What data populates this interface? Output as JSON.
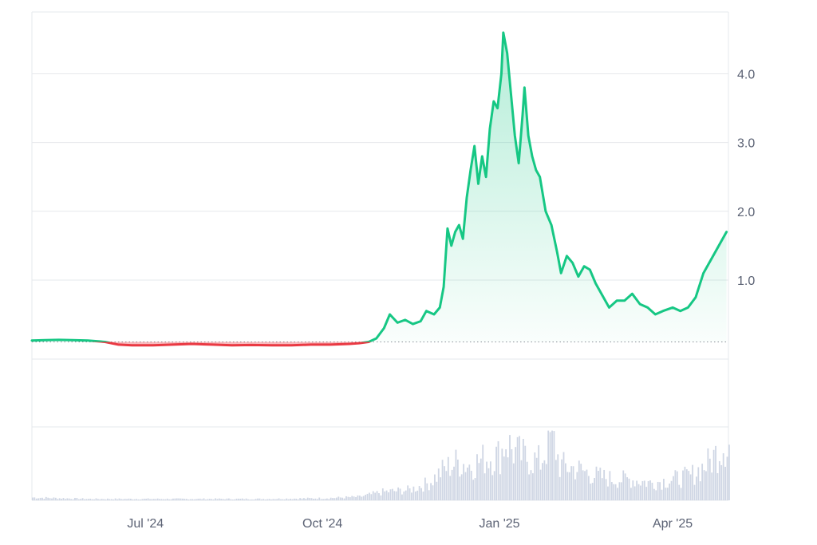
{
  "chart_data": {
    "type": "area",
    "baseline": 0.1,
    "ylim": [
      -0.15,
      4.9
    ],
    "y_ticks": [
      {
        "value": 4.0,
        "label": "4.0"
      },
      {
        "value": 3.0,
        "label": "3.0"
      },
      {
        "value": 2.0,
        "label": "2.0"
      },
      {
        "value": 1.0,
        "label": "1.0"
      }
    ],
    "x_range": [
      "2024-05-03",
      "2025-04-30"
    ],
    "x_ticks": [
      {
        "date": "2024-07-01",
        "label": "Jul '24"
      },
      {
        "date": "2024-10-01",
        "label": "Oct '24"
      },
      {
        "date": "2025-01-01",
        "label": "Jan '25"
      },
      {
        "date": "2025-04-01",
        "label": "Apr '25"
      }
    ],
    "colors": {
      "up": "#16c784",
      "down": "#ea3943",
      "grid": "#e6e8ec",
      "baseline": "#8a8f98",
      "volume": "#cfd6e4",
      "label": "#5b6274"
    },
    "series": [
      {
        "values": [
          [
            "2024-05-03",
            0.12
          ],
          [
            "2024-05-10",
            0.125
          ],
          [
            "2024-05-17",
            0.13
          ],
          [
            "2024-05-24",
            0.125
          ],
          [
            "2024-06-01",
            0.12
          ],
          [
            "2024-06-10",
            0.1
          ],
          [
            "2024-06-17",
            0.06
          ],
          [
            "2024-06-24",
            0.05
          ],
          [
            "2024-07-05",
            0.05
          ],
          [
            "2024-07-15",
            0.06
          ],
          [
            "2024-07-25",
            0.07
          ],
          [
            "2024-08-05",
            0.06
          ],
          [
            "2024-08-15",
            0.05
          ],
          [
            "2024-08-25",
            0.055
          ],
          [
            "2024-09-05",
            0.05
          ],
          [
            "2024-09-15",
            0.05
          ],
          [
            "2024-09-25",
            0.06
          ],
          [
            "2024-10-05",
            0.06
          ],
          [
            "2024-10-15",
            0.07
          ],
          [
            "2024-10-20",
            0.08
          ],
          [
            "2024-10-25",
            0.1
          ],
          [
            "2024-10-29",
            0.15
          ],
          [
            "2024-11-02",
            0.3
          ],
          [
            "2024-11-05",
            0.5
          ],
          [
            "2024-11-09",
            0.38
          ],
          [
            "2024-11-13",
            0.42
          ],
          [
            "2024-11-17",
            0.36
          ],
          [
            "2024-11-21",
            0.4
          ],
          [
            "2024-11-24",
            0.55
          ],
          [
            "2024-11-28",
            0.5
          ],
          [
            "2024-12-01",
            0.6
          ],
          [
            "2024-12-03",
            0.9
          ],
          [
            "2024-12-05",
            1.75
          ],
          [
            "2024-12-07",
            1.5
          ],
          [
            "2024-12-09",
            1.7
          ],
          [
            "2024-12-11",
            1.8
          ],
          [
            "2024-12-13",
            1.6
          ],
          [
            "2024-12-15",
            2.2
          ],
          [
            "2024-12-17",
            2.6
          ],
          [
            "2024-12-19",
            2.95
          ],
          [
            "2024-12-21",
            2.4
          ],
          [
            "2024-12-23",
            2.8
          ],
          [
            "2024-12-25",
            2.5
          ],
          [
            "2024-12-27",
            3.2
          ],
          [
            "2024-12-29",
            3.6
          ],
          [
            "2024-12-31",
            3.5
          ],
          [
            "2025-01-02",
            4.0
          ],
          [
            "2025-01-03",
            4.6
          ],
          [
            "2025-01-05",
            4.3
          ],
          [
            "2025-01-07",
            3.7
          ],
          [
            "2025-01-09",
            3.1
          ],
          [
            "2025-01-11",
            2.7
          ],
          [
            "2025-01-13",
            3.4
          ],
          [
            "2025-01-14",
            3.8
          ],
          [
            "2025-01-16",
            3.1
          ],
          [
            "2025-01-18",
            2.8
          ],
          [
            "2025-01-20",
            2.6
          ],
          [
            "2025-01-22",
            2.5
          ],
          [
            "2025-01-25",
            2.0
          ],
          [
            "2025-01-28",
            1.8
          ],
          [
            "2025-01-31",
            1.4
          ],
          [
            "2025-02-02",
            1.1
          ],
          [
            "2025-02-05",
            1.35
          ],
          [
            "2025-02-08",
            1.25
          ],
          [
            "2025-02-11",
            1.05
          ],
          [
            "2025-02-14",
            1.2
          ],
          [
            "2025-02-17",
            1.15
          ],
          [
            "2025-02-20",
            0.95
          ],
          [
            "2025-02-24",
            0.75
          ],
          [
            "2025-02-27",
            0.6
          ],
          [
            "2025-03-03",
            0.7
          ],
          [
            "2025-03-07",
            0.7
          ],
          [
            "2025-03-11",
            0.8
          ],
          [
            "2025-03-15",
            0.65
          ],
          [
            "2025-03-19",
            0.6
          ],
          [
            "2025-03-23",
            0.5
          ],
          [
            "2025-03-27",
            0.55
          ],
          [
            "2025-04-01",
            0.6
          ],
          [
            "2025-04-05",
            0.55
          ],
          [
            "2025-04-09",
            0.6
          ],
          [
            "2025-04-13",
            0.75
          ],
          [
            "2025-04-17",
            1.1
          ],
          [
            "2025-04-21",
            1.3
          ],
          [
            "2025-04-25",
            1.5
          ],
          [
            "2025-04-29",
            1.7
          ]
        ]
      }
    ],
    "volume_series": {
      "values": [
        [
          "2024-05-03",
          0.04
        ],
        [
          "2024-06-01",
          0.02
        ],
        [
          "2024-07-01",
          0.02
        ],
        [
          "2024-08-01",
          0.02
        ],
        [
          "2024-09-01",
          0.02
        ],
        [
          "2024-10-01",
          0.03
        ],
        [
          "2024-10-20",
          0.05
        ],
        [
          "2024-11-01",
          0.12
        ],
        [
          "2024-11-15",
          0.15
        ],
        [
          "2024-11-25",
          0.25
        ],
        [
          "2024-12-03",
          0.45
        ],
        [
          "2024-12-10",
          0.55
        ],
        [
          "2024-12-17",
          0.5
        ],
        [
          "2024-12-24",
          0.6
        ],
        [
          "2025-01-01",
          0.65
        ],
        [
          "2025-01-04",
          0.85
        ],
        [
          "2025-01-08",
          0.7
        ],
        [
          "2025-01-15",
          0.6
        ],
        [
          "2025-01-22",
          0.55
        ],
        [
          "2025-01-28",
          0.95
        ],
        [
          "2025-02-01",
          0.5
        ],
        [
          "2025-02-10",
          0.45
        ],
        [
          "2025-02-20",
          0.35
        ],
        [
          "2025-03-01",
          0.3
        ],
        [
          "2025-03-10",
          0.3
        ],
        [
          "2025-03-20",
          0.25
        ],
        [
          "2025-04-01",
          0.3
        ],
        [
          "2025-04-10",
          0.35
        ],
        [
          "2025-04-20",
          0.55
        ],
        [
          "2025-04-27",
          0.8
        ]
      ]
    }
  }
}
